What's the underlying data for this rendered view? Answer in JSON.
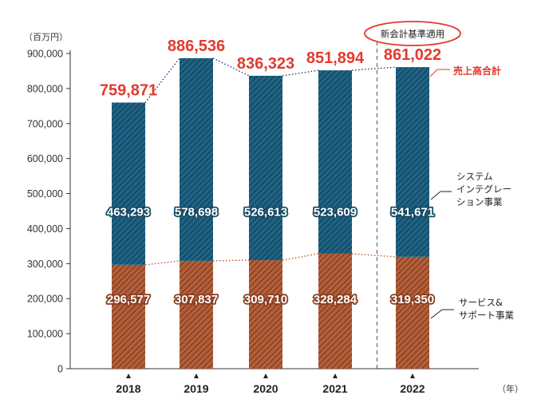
{
  "chart_data": {
    "type": "bar",
    "stacked": true,
    "y_unit": "（百万円）",
    "x_unit": "（年）",
    "ylim": [
      0,
      900000
    ],
    "yticks": [
      0,
      100000,
      200000,
      300000,
      400000,
      500000,
      600000,
      700000,
      800000,
      900000
    ],
    "ytick_labels": [
      "0",
      "100,000",
      "200,000",
      "300,000",
      "400,000",
      "500,000",
      "600,000",
      "700,000",
      "800,000",
      "900,000"
    ],
    "categories": [
      "2018",
      "2019",
      "2020",
      "2021",
      "2022"
    ],
    "series": [
      {
        "name": "サービス＆サポート事業",
        "name_lines": [
          "サービス&",
          "サポート事業"
        ],
        "values": [
          296577,
          307837,
          309710,
          328284,
          319350
        ],
        "labels": [
          "296,577",
          "307,837",
          "309,710",
          "328,284",
          "319,350"
        ],
        "color": "#9c4a2a"
      },
      {
        "name": "システムインテグレーション事業",
        "name_lines": [
          "システム",
          "インテグレー",
          "ション事業"
        ],
        "values": [
          463293,
          578698,
          526613,
          523609,
          541671
        ],
        "labels": [
          "463,293",
          "578,698",
          "526,613",
          "523,609",
          "541,671"
        ],
        "color": "#1b5a78"
      }
    ],
    "totals": {
      "name": "売上高合計",
      "values": [
        759871,
        886536,
        836323,
        851894,
        861022
      ],
      "labels": [
        "759,871",
        "886,536",
        "836,323",
        "851,894",
        "861,022"
      ],
      "color": "#e23a2e"
    },
    "annotation": {
      "text": "新会計基準適用",
      "before_category": "2022"
    },
    "grid": false
  }
}
